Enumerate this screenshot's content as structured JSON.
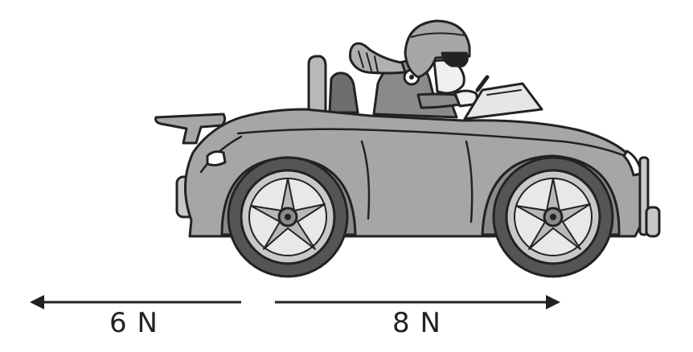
{
  "forces": {
    "left": {
      "label": "6 N",
      "direction": "left"
    },
    "right": {
      "label": "8 N",
      "direction": "right"
    }
  },
  "colors": {
    "outline": "#222222",
    "body": "#a6a6a6",
    "body_dark": "#8a8a8a",
    "tire": "#555555",
    "rim": "#d9d9d9",
    "skin": "#f0f0f0",
    "seat": "#6e6e6e"
  }
}
